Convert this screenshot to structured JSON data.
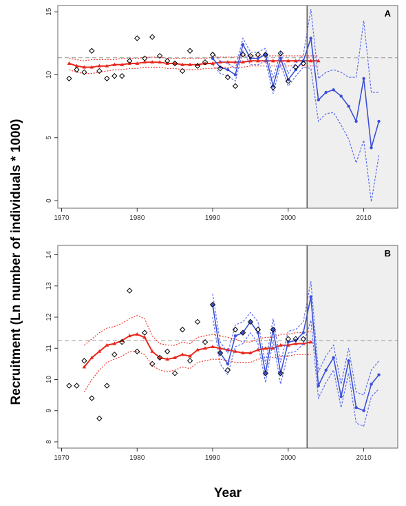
{
  "ylabel": "Recruitment  (Ln number of individuals * 1000)",
  "xlabel": "Year",
  "colors": {
    "observed": "#000000",
    "model": "#e8271c",
    "model_ci": "#ee3b30",
    "recent": "#3b4fd8",
    "recent_ci": "#5a6cf0",
    "reference": "#999999",
    "shade": "#efefef"
  },
  "chart_data": [
    {
      "type": "line",
      "panel": "A",
      "xlim": [
        1969.5,
        2014.5
      ],
      "ylim": [
        -0.6,
        15.5
      ],
      "xticks": [
        1970,
        1980,
        1990,
        2000,
        2010
      ],
      "yticks": [
        0,
        5,
        10,
        15
      ],
      "shaded_from": 2002.5,
      "reference_y": 11.35,
      "observed": {
        "x": [
          1971,
          1972,
          1973,
          1974,
          1975,
          1976,
          1977,
          1978,
          1979,
          1980,
          1981,
          1982,
          1983,
          1984,
          1985,
          1986,
          1987,
          1988,
          1989,
          1990,
          1991,
          1992,
          1993,
          1994,
          1995,
          1996,
          1997,
          1998,
          1999,
          2000,
          2001,
          2002
        ],
        "y": [
          9.7,
          10.4,
          10.2,
          11.9,
          10.3,
          9.7,
          9.9,
          9.9,
          11.1,
          12.9,
          11.3,
          13.0,
          11.5,
          11.1,
          10.9,
          10.3,
          11.9,
          10.7,
          11.0,
          11.6,
          10.5,
          9.8,
          9.1,
          11.6,
          11.5,
          11.6,
          11.6,
          9.0,
          11.7,
          9.5,
          10.6,
          10.9
        ]
      },
      "model": {
        "x": [
          1971,
          1972,
          1973,
          1974,
          1975,
          1976,
          1977,
          1978,
          1979,
          1980,
          1981,
          1982,
          1983,
          1984,
          1985,
          1986,
          1987,
          1988,
          1989,
          1990,
          1991,
          1992,
          1993,
          1994,
          1995,
          1996,
          1997,
          1998,
          1999,
          2000,
          2001,
          2002,
          2003,
          2004
        ],
        "y": [
          10.9,
          10.7,
          10.6,
          10.6,
          10.7,
          10.7,
          10.8,
          10.8,
          10.9,
          10.9,
          11.0,
          11.0,
          11.0,
          10.9,
          10.9,
          10.8,
          10.8,
          10.8,
          10.9,
          10.9,
          11.0,
          11.0,
          11.0,
          11.0,
          11.1,
          11.1,
          11.1,
          11.1,
          11.1,
          11.1,
          11.1,
          11.1,
          11.1,
          11.1
        ],
        "lower": [
          10.4,
          10.2,
          10.1,
          10.1,
          10.2,
          10.3,
          10.4,
          10.4,
          10.5,
          10.5,
          10.6,
          10.6,
          10.6,
          10.5,
          10.5,
          10.4,
          10.4,
          10.4,
          10.5,
          10.5,
          10.6,
          10.6,
          10.6,
          10.6,
          10.7,
          10.7,
          10.7,
          10.7,
          10.7,
          10.7,
          10.7,
          10.7,
          10.7,
          10.7
        ],
        "upper": [
          11.3,
          11.2,
          11.1,
          11.2,
          11.2,
          11.2,
          11.2,
          11.3,
          11.3,
          11.3,
          11.4,
          11.4,
          11.4,
          11.3,
          11.3,
          11.3,
          11.3,
          11.3,
          11.3,
          11.4,
          11.4,
          11.4,
          11.4,
          11.5,
          11.5,
          11.5,
          11.5,
          11.5,
          11.5,
          11.5,
          11.5,
          11.5,
          11.5,
          11.5
        ]
      },
      "recent": {
        "x": [
          1990,
          1991,
          1992,
          1993,
          1994,
          1995,
          1996,
          1997,
          1998,
          1999,
          2000,
          2001,
          2002,
          2003,
          2004,
          2005,
          2006,
          2007,
          2008,
          2009,
          2010,
          2011,
          2012
        ],
        "y": [
          11.3,
          10.6,
          10.4,
          10.0,
          12.4,
          11.3,
          11.3,
          11.6,
          9.1,
          11.3,
          9.6,
          10.4,
          11.1,
          12.9,
          8.0,
          8.6,
          8.8,
          8.3,
          7.5,
          6.3,
          9.7,
          4.2,
          6.3
        ],
        "lower": [
          10.8,
          10.1,
          9.9,
          9.5,
          11.9,
          10.8,
          10.8,
          11.1,
          8.5,
          10.8,
          9.1,
          9.9,
          10.6,
          10.5,
          6.3,
          6.9,
          7.0,
          6.0,
          4.9,
          3.0,
          4.8,
          -0.1,
          3.6
        ],
        "upper": [
          11.8,
          11.1,
          10.9,
          10.5,
          12.9,
          11.8,
          11.8,
          12.1,
          9.7,
          11.8,
          10.1,
          10.9,
          11.6,
          15.2,
          9.7,
          10.2,
          10.4,
          10.2,
          9.8,
          9.8,
          14.3,
          8.6,
          8.6
        ]
      }
    },
    {
      "type": "line",
      "panel": "B",
      "xlim": [
        1969.5,
        2014.5
      ],
      "ylim": [
        7.8,
        14.3
      ],
      "xticks": [
        1970,
        1980,
        1990,
        2000,
        2010
      ],
      "yticks": [
        8,
        9,
        10,
        11,
        12,
        13,
        14
      ],
      "shaded_from": 2002.5,
      "reference_y": 11.25,
      "observed": {
        "x": [
          1971,
          1972,
          1973,
          1974,
          1975,
          1976,
          1977,
          1978,
          1979,
          1980,
          1981,
          1982,
          1983,
          1984,
          1985,
          1986,
          1987,
          1988,
          1989,
          1990,
          1991,
          1992,
          1993,
          1994,
          1995,
          1996,
          1997,
          1998,
          1999,
          2000,
          2001,
          2002
        ],
        "y": [
          9.8,
          9.8,
          10.6,
          9.4,
          8.75,
          9.8,
          10.8,
          11.2,
          12.85,
          10.9,
          11.5,
          10.5,
          10.7,
          10.9,
          10.2,
          11.6,
          10.6,
          11.85,
          11.2,
          12.4,
          10.85,
          10.3,
          11.6,
          11.5,
          11.85,
          11.6,
          10.2,
          11.6,
          10.2,
          11.3,
          11.3,
          11.3
        ]
      },
      "model": {
        "x": [
          1973,
          1974,
          1975,
          1976,
          1977,
          1978,
          1979,
          1980,
          1981,
          1982,
          1983,
          1984,
          1985,
          1986,
          1987,
          1988,
          1989,
          1990,
          1991,
          1992,
          1993,
          1994,
          1995,
          1996,
          1997,
          1998,
          1999,
          2000,
          2001,
          2002,
          2003
        ],
        "y": [
          10.4,
          10.7,
          10.9,
          11.1,
          11.15,
          11.25,
          11.4,
          11.45,
          11.35,
          10.9,
          10.7,
          10.65,
          10.7,
          10.8,
          10.75,
          10.95,
          11.0,
          11.05,
          11.0,
          10.95,
          10.9,
          10.85,
          10.85,
          10.95,
          11.0,
          11.0,
          11.1,
          11.1,
          11.15,
          11.15,
          11.2
        ],
        "lower": [
          9.6,
          10.0,
          10.3,
          10.55,
          10.65,
          10.75,
          10.9,
          10.9,
          10.8,
          10.45,
          10.3,
          10.25,
          10.3,
          10.4,
          10.35,
          10.55,
          10.6,
          10.65,
          10.65,
          10.6,
          10.55,
          10.55,
          10.55,
          10.65,
          10.7,
          10.7,
          10.75,
          10.75,
          10.8,
          10.8,
          10.8
        ],
        "upper": [
          11.1,
          11.3,
          11.5,
          11.65,
          11.7,
          11.8,
          11.95,
          12.05,
          11.95,
          11.4,
          11.15,
          11.1,
          11.1,
          11.2,
          11.15,
          11.35,
          11.4,
          11.45,
          11.4,
          11.35,
          11.3,
          11.2,
          11.2,
          11.3,
          11.35,
          11.35,
          11.45,
          11.45,
          11.5,
          11.5,
          11.55
        ]
      },
      "recent": {
        "x": [
          1990,
          1991,
          1992,
          1993,
          1994,
          1995,
          1996,
          1997,
          1998,
          1999,
          2000,
          2001,
          2002,
          2003,
          2004,
          2005,
          2006,
          2007,
          2008,
          2009,
          2010,
          2011,
          2012
        ],
        "y": [
          12.4,
          10.85,
          10.5,
          11.4,
          11.5,
          11.85,
          11.5,
          10.2,
          11.6,
          10.2,
          11.2,
          11.25,
          11.5,
          12.65,
          9.8,
          10.3,
          10.7,
          9.45,
          10.6,
          9.1,
          9.0,
          9.85,
          10.15
        ],
        "lower": [
          12.0,
          10.5,
          10.15,
          11.05,
          11.15,
          11.5,
          11.15,
          9.9,
          11.25,
          9.85,
          10.85,
          10.9,
          11.15,
          11.9,
          9.4,
          9.9,
          10.3,
          9.1,
          10.2,
          8.6,
          8.5,
          9.45,
          9.7
        ],
        "upper": [
          12.75,
          11.2,
          10.85,
          11.75,
          11.85,
          12.15,
          11.85,
          10.5,
          11.95,
          10.55,
          11.55,
          11.6,
          11.85,
          13.15,
          10.25,
          10.75,
          11.1,
          9.85,
          11.0,
          9.6,
          9.5,
          10.3,
          10.6
        ]
      }
    }
  ]
}
